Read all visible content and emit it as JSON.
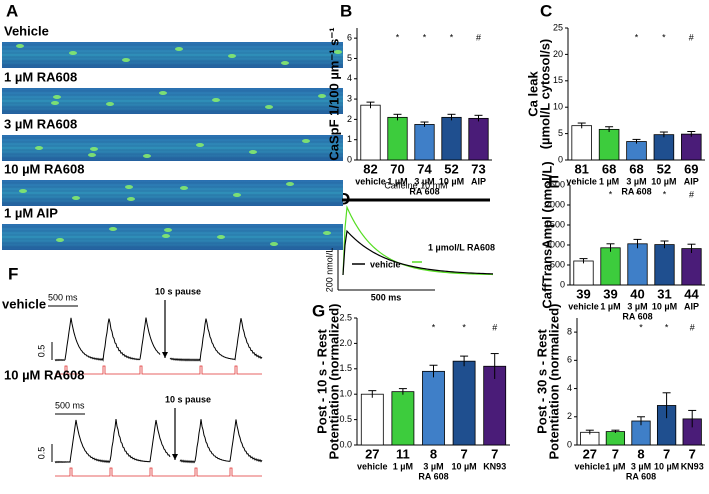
{
  "panel_a": {
    "letter": "A",
    "labels": [
      "Vehicle",
      "1 µM RA608",
      "3 µM RA608",
      "10 µM RA608",
      "1 µM AIP"
    ]
  },
  "panel_d": {
    "letter": "D",
    "title": "Caffeine 10 mM",
    "legend": [
      "1 µmol/L RA608",
      "vehicle"
    ],
    "scale_y": "200 nmol/L",
    "scale_x": "500 ms"
  },
  "panel_f": {
    "letter": "F",
    "rows": [
      {
        "label": "vehicle",
        "scale_x": "500 ms",
        "pause": "10 s pause",
        "scale_y": "0.5"
      },
      {
        "label": "10 µM RA608",
        "scale_x": "500 ms",
        "pause": "10 s pause",
        "scale_y": "0.5"
      }
    ]
  },
  "panel_g": {
    "letter": "G"
  },
  "chart_data": [
    {
      "type": "bar",
      "panel": "B",
      "ylabel": [
        "CaSpF 1/100 µm⁻¹ s⁻¹"
      ],
      "categories": [
        "vehicle",
        "1 µM",
        "3 µM",
        "10 µM",
        "AIP"
      ],
      "group_label": "RA 608",
      "n": [
        82,
        70,
        74,
        52,
        73
      ],
      "significance": [
        null,
        "*",
        "*",
        "*",
        "#"
      ],
      "values": [
        2.7,
        2.1,
        1.75,
        2.1,
        2.05
      ],
      "errors": [
        0.15,
        0.15,
        0.12,
        0.15,
        0.15
      ],
      "colors": [
        "#ffffff",
        "#3dcc3d",
        "#3f7fc8",
        "#1f4f8f",
        "#4a1c78"
      ],
      "ylim": [
        0,
        6.5
      ],
      "yticks": [
        0,
        1,
        2,
        3,
        4,
        5,
        6
      ]
    },
    {
      "type": "bar",
      "panel": "C",
      "ylabel": [
        "Ca leak",
        "(µmol/L cytosol/s)"
      ],
      "categories": [
        "vehicle",
        "1 µM",
        "3 µM",
        "10 µM",
        "AIP"
      ],
      "group_label": "RA 608",
      "n": [
        81,
        68,
        68,
        52,
        69
      ],
      "significance": [
        null,
        null,
        "*",
        "*",
        "#"
      ],
      "values": [
        6.5,
        5.8,
        3.5,
        4.8,
        4.9
      ],
      "errors": [
        0.5,
        0.5,
        0.4,
        0.5,
        0.5
      ],
      "colors": [
        "#ffffff",
        "#3dcc3d",
        "#3f7fc8",
        "#1f4f8f",
        "#4a1c78"
      ],
      "ylim": [
        0,
        25
      ],
      "yticks": [
        0,
        5,
        10,
        15,
        20,
        25
      ]
    },
    {
      "type": "bar",
      "panel": "E",
      "ylabel": [
        "CaffTransAmpl (nmol/L)"
      ],
      "categories": [
        "vehicle",
        "1 µM",
        "3 µM",
        "10 µM",
        "AIP"
      ],
      "group_label": "RA 608",
      "n": [
        39,
        39,
        40,
        31,
        44
      ],
      "significance": [
        null,
        "*",
        "*",
        "*",
        "#"
      ],
      "values": [
        600,
        930,
        1030,
        1010,
        910
      ],
      "errors": [
        60,
        100,
        110,
        90,
        110
      ],
      "colors": [
        "#ffffff",
        "#3dcc3d",
        "#3f7fc8",
        "#1f4f8f",
        "#4a1c78"
      ],
      "ylim": [
        0,
        2500
      ],
      "yticks": [
        0,
        500,
        1000,
        1500,
        2000,
        2500
      ]
    },
    {
      "type": "bar",
      "ylabel": [
        "Post - 10 s - Rest",
        "Potentiation (normalized)"
      ],
      "categories": [
        "vehicle",
        "1 µM",
        "3 µM",
        "10 µM",
        "KN93"
      ],
      "group_label": "RA 608",
      "n": [
        27,
        11,
        8,
        7,
        7
      ],
      "significance": [
        null,
        null,
        "*",
        "*",
        "#"
      ],
      "values": [
        1.0,
        1.05,
        1.45,
        1.65,
        1.55
      ],
      "errors": [
        0.07,
        0.06,
        0.12,
        0.1,
        0.25
      ],
      "colors": [
        "#ffffff",
        "#3dcc3d",
        "#3f7fc8",
        "#1f4f8f",
        "#4a1c78"
      ],
      "ylim": [
        0,
        2.5
      ],
      "yticks": [
        {
          "value": 0,
          "label": "0.0"
        },
        0.5,
        {
          "value": 1,
          "label": "1.0"
        },
        1.5,
        {
          "value": 2,
          "label": "2.0"
        },
        2.5
      ]
    },
    {
      "type": "bar",
      "ylabel": [
        "Post - 30 s - Rest",
        "Potentiation (normalized)"
      ],
      "categories": [
        "vehicle",
        "1 µM",
        "3 µM",
        "10 µM",
        "KN93"
      ],
      "group_label": "RA 608",
      "n": [
        27,
        7,
        8,
        7,
        7
      ],
      "significance": [
        null,
        null,
        "*",
        "*",
        "#"
      ],
      "values": [
        0.9,
        0.95,
        1.7,
        2.8,
        1.85
      ],
      "errors": [
        0.15,
        0.1,
        0.3,
        0.9,
        0.6
      ],
      "colors": [
        "#ffffff",
        "#3dcc3d",
        "#3f7fc8",
        "#1f4f8f",
        "#4a1c78"
      ],
      "ylim": [
        0,
        9
      ],
      "yticks": [
        0,
        2,
        4,
        6,
        8
      ]
    }
  ]
}
